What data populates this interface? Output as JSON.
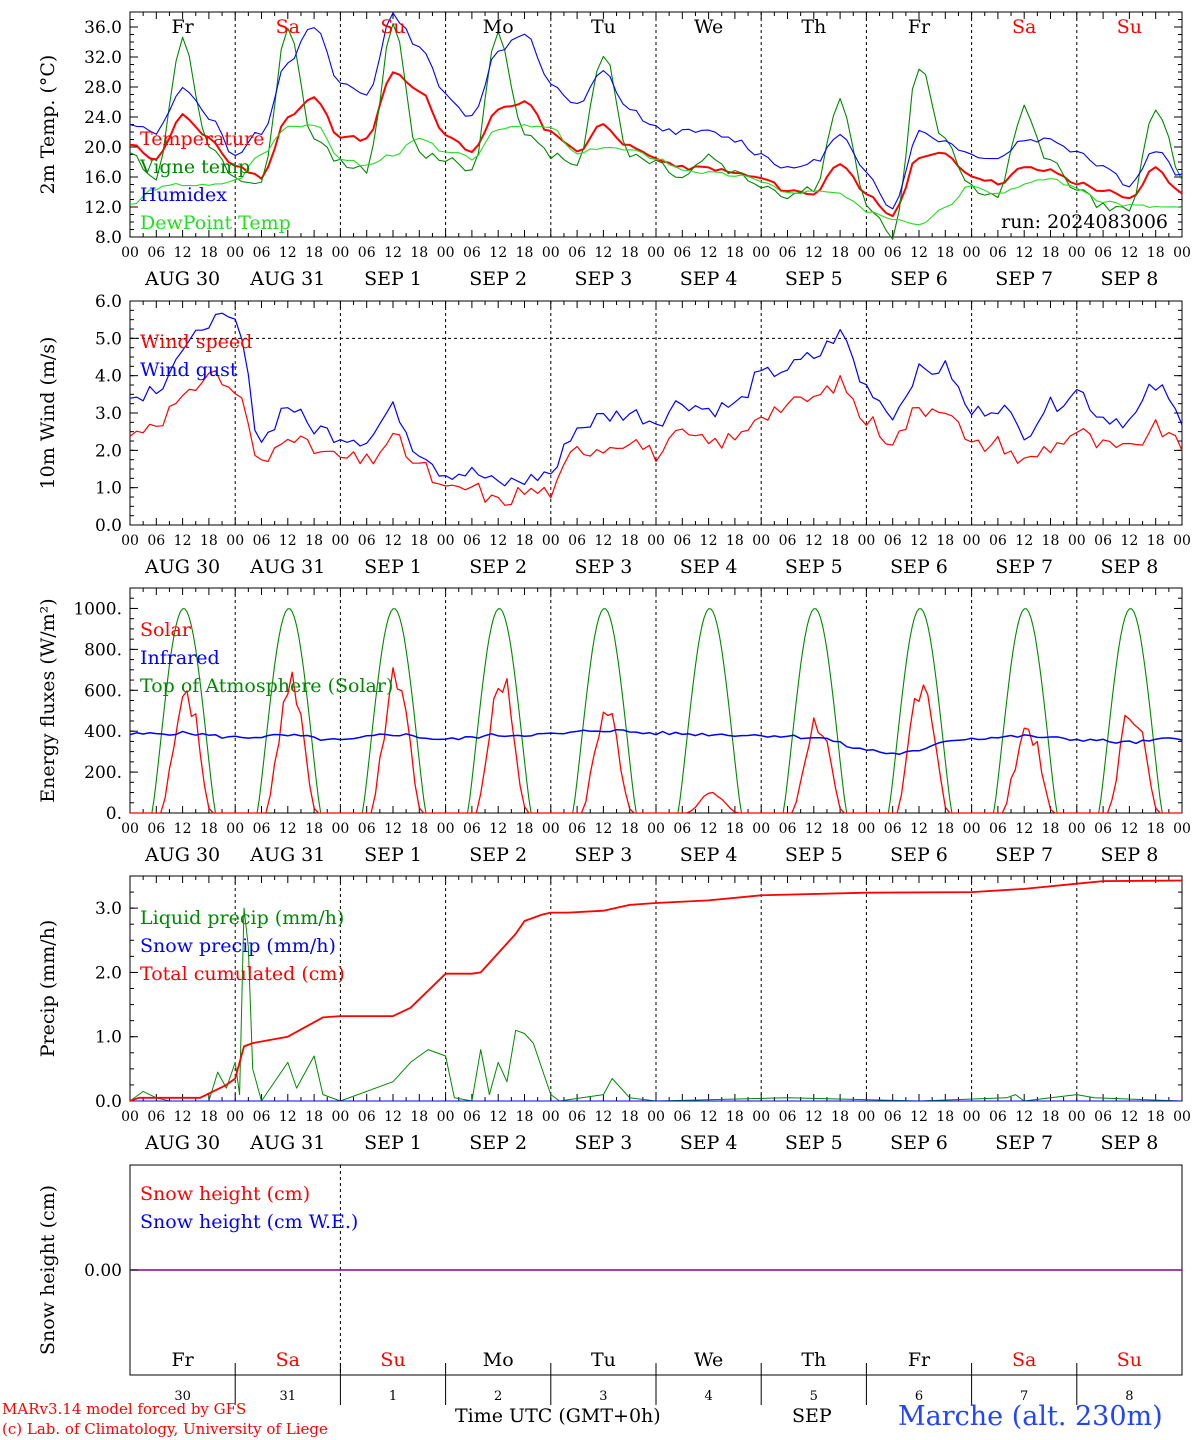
{
  "run_label": "run: 2024083006",
  "days": {
    "weekday": [
      "Fr",
      "Sa",
      "Su",
      "Mo",
      "Tu",
      "We",
      "Th",
      "Fr",
      "Sa",
      "Su"
    ],
    "weekday_red": [
      false,
      true,
      true,
      false,
      false,
      false,
      false,
      false,
      true,
      true
    ],
    "date_label": [
      "AUG 30",
      "AUG 31",
      "SEP  1",
      "SEP  2",
      "SEP  3",
      "SEP  4",
      "SEP  5",
      "SEP  6",
      "SEP  7",
      "SEP  8"
    ],
    "day_num": [
      "30",
      "31",
      "1",
      "2",
      "3",
      "4",
      "5",
      "6",
      "7",
      "8"
    ],
    "hour_ticks": [
      "00",
      "06",
      "12",
      "18"
    ],
    "final_tick": "00"
  },
  "colors": {
    "red": "#ff0000",
    "green": "#008800",
    "blue": "#0000ff",
    "light_green": "#22dd22",
    "purple": "#880088"
  },
  "footer": {
    "model": "MARv3.14 model forced by GFS",
    "lab": "(c) Lab. of Climatology, University of Liege",
    "time_axis": "Time UTC (GMT+0h)",
    "month": "SEP",
    "location": "Marche (alt. 230m)"
  },
  "chart_data": [
    {
      "type": "line",
      "ylabel": "2m Temp. (°C)",
      "ylim": [
        8,
        38
      ],
      "yticks": [
        "8.0",
        "12.0",
        "16.0",
        "20.0",
        "24.0",
        "28.0",
        "32.0",
        "36.0"
      ],
      "x_unit": "hours since 2024-08-30 00 UTC",
      "series": [
        {
          "name": "Temperature",
          "color": "red",
          "x": [
            0,
            6,
            12,
            18,
            24,
            30,
            36,
            42,
            48,
            54,
            60,
            66,
            72,
            78,
            84,
            90,
            96,
            102,
            108,
            114,
            120,
            126,
            132,
            138,
            144,
            150,
            156,
            162,
            168,
            174,
            180,
            186,
            192,
            198,
            204,
            210,
            216,
            222,
            228,
            234,
            240
          ],
          "values": [
            20.2,
            18.5,
            24.2,
            21.0,
            17.5,
            16.0,
            24.0,
            26.5,
            21.5,
            21.0,
            29.8,
            27.5,
            21.5,
            19.5,
            25.0,
            26.0,
            22.0,
            19.5,
            23.0,
            20.0,
            18.5,
            17.2,
            17.2,
            16.5,
            15.8,
            14.2,
            13.8,
            18.0,
            13.5,
            10.9,
            18.8,
            19.0,
            16.2,
            15.2,
            17.2,
            16.8,
            15.2,
            14.2,
            13.0,
            17.2,
            13.8
          ]
        },
        {
          "name": "Vigne temp",
          "color": "green",
          "x": [
            0,
            6,
            12,
            18,
            24,
            30,
            36,
            42,
            48,
            54,
            60,
            66,
            72,
            78,
            84,
            90,
            96,
            102,
            108,
            114,
            120,
            126,
            132,
            138,
            144,
            150,
            156,
            162,
            168,
            174,
            180,
            186,
            192,
            198,
            204,
            210,
            216,
            222,
            228,
            234,
            240
          ],
          "values": [
            19.0,
            16.0,
            34.5,
            20.0,
            15.5,
            15.2,
            35.5,
            21.0,
            18.0,
            17.0,
            36.0,
            19.0,
            18.5,
            17.0,
            35.5,
            21.5,
            19.0,
            18.0,
            32.5,
            19.0,
            18.0,
            16.0,
            18.8,
            16.5,
            15.0,
            13.5,
            14.5,
            26.0,
            12.5,
            8.0,
            30.5,
            21.0,
            14.5,
            13.5,
            25.0,
            18.0,
            14.5,
            12.0,
            11.5,
            25.5,
            16.0
          ]
        },
        {
          "name": "Humidex",
          "color": "blue",
          "x": [
            0,
            6,
            12,
            18,
            24,
            30,
            36,
            42,
            48,
            54,
            60,
            66,
            72,
            78,
            84,
            90,
            96,
            102,
            108,
            114,
            120,
            126,
            132,
            138,
            144,
            150,
            156,
            162,
            168,
            174,
            180,
            186,
            192,
            198,
            204,
            210,
            216,
            222,
            228,
            234,
            240
          ],
          "values": [
            22.8,
            22.0,
            28.0,
            24.0,
            19.0,
            22.0,
            31.5,
            36.0,
            28.5,
            27.0,
            37.5,
            33.5,
            27.0,
            24.0,
            33.0,
            35.0,
            28.5,
            25.5,
            30.0,
            25.0,
            22.5,
            22.0,
            22.0,
            21.0,
            19.0,
            17.0,
            18.0,
            21.5,
            16.5,
            12.0,
            22.0,
            20.8,
            19.0,
            18.5,
            21.0,
            21.0,
            19.5,
            17.5,
            15.0,
            19.5,
            16.0
          ]
        },
        {
          "name": "DewPoint Temp",
          "color": "light_green",
          "x": [
            0,
            6,
            12,
            18,
            24,
            30,
            36,
            42,
            48,
            54,
            60,
            66,
            72,
            78,
            84,
            90,
            96,
            102,
            108,
            114,
            120,
            126,
            132,
            138,
            144,
            150,
            156,
            162,
            168,
            174,
            180,
            186,
            192,
            198,
            204,
            210,
            216,
            222,
            228,
            234,
            240
          ],
          "values": [
            12.2,
            14.5,
            15.0,
            14.8,
            15.5,
            19.0,
            22.8,
            23.0,
            18.5,
            17.5,
            19.0,
            21.0,
            19.5,
            18.5,
            22.5,
            23.0,
            22.5,
            19.0,
            20.0,
            19.5,
            18.5,
            17.0,
            16.5,
            16.2,
            15.5,
            13.8,
            14.0,
            13.8,
            11.5,
            10.5,
            9.8,
            12.0,
            15.0,
            13.8,
            15.0,
            15.8,
            14.5,
            12.8,
            12.2,
            12.0,
            11.8
          ]
        }
      ]
    },
    {
      "type": "line",
      "ylabel": "10m Wind (m/s)",
      "ylim": [
        0,
        6
      ],
      "yticks": [
        "0.0",
        "1.0",
        "2.0",
        "3.0",
        "4.0",
        "5.0",
        "6.0"
      ],
      "series": [
        {
          "name": "Wind speed",
          "color": "red",
          "x": [
            0,
            6,
            12,
            18,
            24,
            30,
            36,
            42,
            48,
            54,
            60,
            66,
            72,
            78,
            84,
            90,
            96,
            102,
            108,
            114,
            120,
            126,
            132,
            138,
            144,
            150,
            156,
            162,
            168,
            174,
            180,
            186,
            192,
            198,
            204,
            210,
            216,
            222,
            228,
            234,
            240
          ],
          "values": [
            2.4,
            2.8,
            3.3,
            4.1,
            3.6,
            1.6,
            2.5,
            2.0,
            1.8,
            1.7,
            2.3,
            1.6,
            0.9,
            1.0,
            0.6,
            0.9,
            0.9,
            2.0,
            2.1,
            2.3,
            1.9,
            2.4,
            2.2,
            2.3,
            3.0,
            3.2,
            3.4,
            3.8,
            2.8,
            2.3,
            3.1,
            3.2,
            2.1,
            2.2,
            1.7,
            2.1,
            2.5,
            2.1,
            2.0,
            2.6,
            2.1
          ]
        },
        {
          "name": "Wind gust",
          "color": "blue",
          "x": [
            0,
            6,
            12,
            18,
            24,
            30,
            36,
            42,
            48,
            54,
            60,
            66,
            72,
            78,
            84,
            90,
            96,
            102,
            108,
            114,
            120,
            126,
            132,
            138,
            144,
            150,
            156,
            162,
            168,
            174,
            180,
            186,
            192,
            198,
            204,
            210,
            216,
            222,
            228,
            234,
            240
          ],
          "values": [
            3.4,
            3.7,
            4.6,
            5.5,
            5.4,
            2.3,
            3.2,
            2.6,
            2.4,
            2.3,
            3.1,
            2.0,
            1.4,
            1.4,
            1.1,
            1.2,
            1.4,
            2.6,
            2.9,
            3.0,
            2.8,
            3.3,
            3.1,
            3.2,
            4.0,
            4.2,
            4.5,
            5.1,
            3.7,
            3.0,
            4.1,
            4.2,
            3.0,
            3.2,
            2.5,
            3.2,
            3.6,
            2.9,
            2.8,
            3.7,
            2.9
          ]
        }
      ]
    },
    {
      "type": "line",
      "ylabel": "Energy fluxes (W/m²)",
      "ylim": [
        0,
        1100
      ],
      "yticks": [
        "0.",
        "200.",
        "400.",
        "600.",
        "800.",
        "1000."
      ],
      "series": [
        {
          "name": "Solar",
          "color": "red",
          "peaks": [
            {
              "h": 12,
              "v": 630
            },
            {
              "h": 36,
              "v": 690
            },
            {
              "h": 60,
              "v": 710
            },
            {
              "h": 84,
              "v": 700
            },
            {
              "h": 108,
              "v": 520
            },
            {
              "h": 132,
              "v": 100
            },
            {
              "h": 156,
              "v": 470
            },
            {
              "h": 180,
              "v": 700
            },
            {
              "h": 204,
              "v": 440
            },
            {
              "h": 228,
              "v": 540
            }
          ]
        },
        {
          "name": "Infrared",
          "color": "blue",
          "x": [
            0,
            12,
            24,
            36,
            48,
            60,
            72,
            84,
            96,
            108,
            120,
            132,
            144,
            156,
            168,
            174,
            180,
            186,
            192,
            204,
            216,
            228,
            240
          ],
          "values": [
            385,
            390,
            370,
            378,
            355,
            385,
            360,
            380,
            385,
            405,
            390,
            385,
            380,
            370,
            310,
            290,
            300,
            355,
            365,
            375,
            360,
            345,
            365
          ]
        },
        {
          "name": "Top of Atmosphere (Solar)",
          "color": "green",
          "peak": 1000
        }
      ]
    },
    {
      "type": "line",
      "ylabel": "Precip (mm/h)",
      "ylim": [
        0,
        3.5
      ],
      "yticks": [
        "0.0",
        "1.0",
        "2.0",
        "3.0"
      ],
      "series": [
        {
          "name": "Liquid precip (mm/h)",
          "color": "green",
          "x": [
            0,
            3,
            6,
            9,
            15,
            18,
            20,
            22,
            24,
            25,
            26,
            27,
            28,
            30,
            36,
            38,
            42,
            44,
            48,
            60,
            64,
            68,
            72,
            74,
            78,
            80,
            82,
            84,
            86,
            88,
            90,
            92,
            94,
            96,
            98,
            108,
            110,
            114,
            120,
            150,
            180,
            200,
            202,
            204,
            210,
            216,
            220,
            240
          ],
          "values": [
            0,
            0.15,
            0.05,
            0,
            0,
            0,
            0.45,
            0.2,
            0.6,
            0.1,
            3.0,
            2.4,
            0.5,
            0,
            0.6,
            0.2,
            0.7,
            0.1,
            0,
            0.3,
            0.6,
            0.8,
            0.7,
            0.05,
            0,
            0.8,
            0.1,
            0.6,
            0.3,
            1.1,
            1.05,
            0.9,
            0.5,
            0.1,
            0,
            0.1,
            0.35,
            0.05,
            0,
            0.05,
            0,
            0.05,
            0.1,
            0,
            0.05,
            0.1,
            0.05,
            0
          ]
        },
        {
          "name": "Snow precip (mm/h)",
          "color": "blue",
          "x": [
            0,
            240
          ],
          "values": [
            0,
            0
          ]
        },
        {
          "name": "Total cumulated (cm)",
          "color": "red",
          "x": [
            0,
            2,
            16,
            22,
            24,
            26,
            28,
            32,
            36,
            40,
            44,
            48,
            60,
            64,
            72,
            78,
            80,
            84,
            88,
            90,
            94,
            96,
            100,
            108,
            114,
            120,
            132,
            144,
            168,
            192,
            204,
            216,
            222,
            240
          ],
          "values": [
            0,
            0.05,
            0.05,
            0.25,
            0.35,
            0.85,
            0.9,
            0.95,
            1.0,
            1.15,
            1.3,
            1.32,
            1.32,
            1.45,
            1.98,
            1.98,
            2.0,
            2.3,
            2.6,
            2.8,
            2.9,
            2.93,
            2.93,
            2.96,
            3.05,
            3.08,
            3.12,
            3.2,
            3.24,
            3.25,
            3.3,
            3.38,
            3.42,
            3.43
          ]
        }
      ]
    },
    {
      "type": "line",
      "ylabel": "Snow height (cm)",
      "ytick_label": "0.00",
      "series": [
        {
          "name": "Snow height (cm)",
          "color": "red",
          "x": [
            0,
            240
          ],
          "values": [
            0,
            0
          ]
        },
        {
          "name": "Snow height (cm W.E.)",
          "color": "blue",
          "x": [
            0,
            240
          ],
          "values": [
            0,
            0
          ]
        }
      ]
    }
  ]
}
